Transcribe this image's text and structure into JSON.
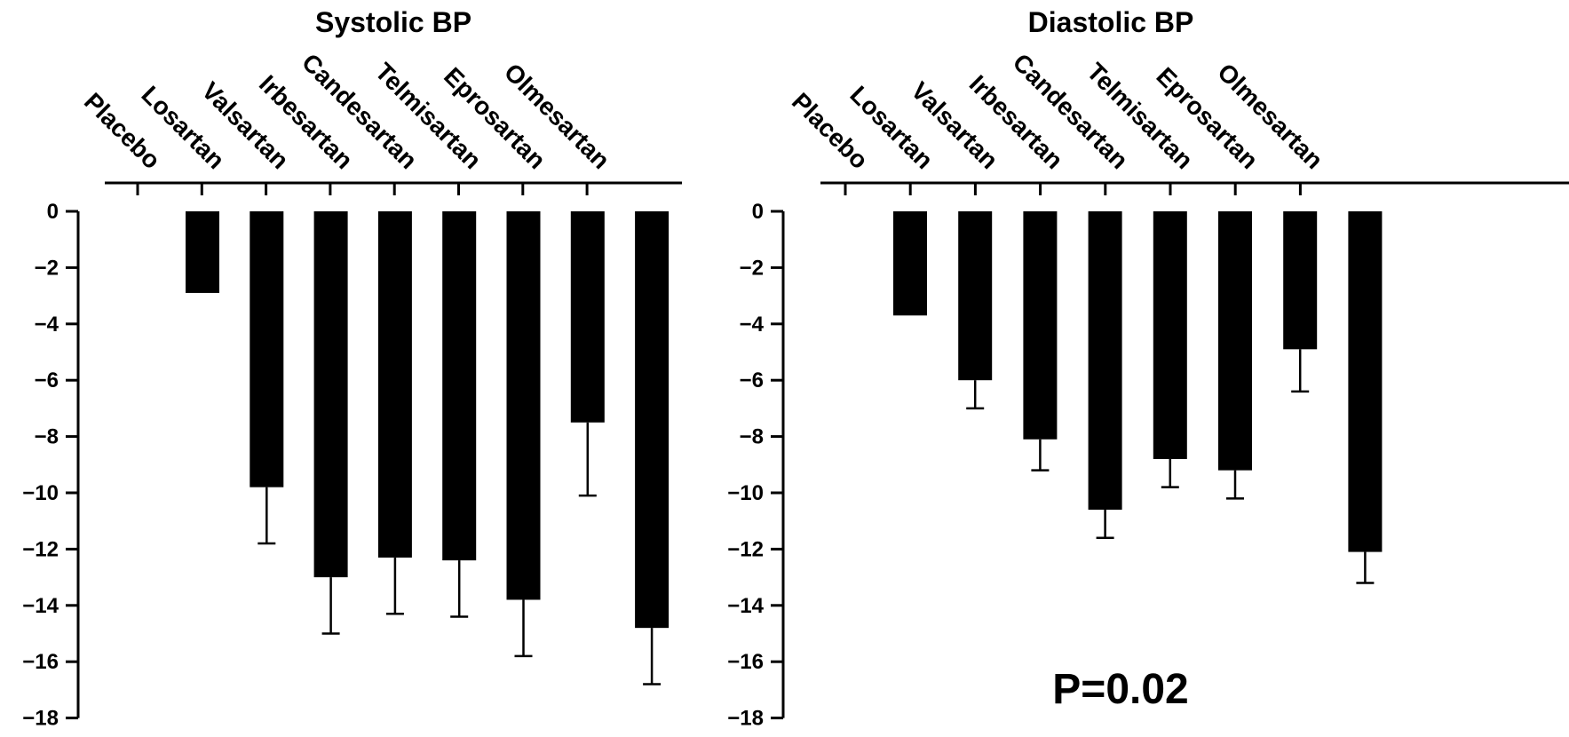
{
  "chart_data": [
    {
      "type": "bar",
      "title": "Systolic BP",
      "categories": [
        "Placebo",
        "Losartan",
        "Valsartan",
        "Irbesartan",
        "Candesartan",
        "Telmisartan",
        "Eprosartan",
        "Olmesartan"
      ],
      "values": [
        -2.9,
        -9.8,
        -13.0,
        -12.3,
        -12.4,
        -13.8,
        -7.5,
        -14.8
      ],
      "error": [
        0,
        2.0,
        2.0,
        2.0,
        2.0,
        2.0,
        2.6,
        2.0
      ],
      "yticks": [
        "0",
        "−2",
        "−4",
        "−6",
        "−8",
        "−10",
        "−12",
        "−14",
        "−16",
        "−18"
      ],
      "ylim": [
        -18,
        0
      ],
      "xaxis_position": "top",
      "grid": false,
      "color": "#000000"
    },
    {
      "type": "bar",
      "title": "Diastolic BP",
      "categories": [
        "Placebo",
        "Losartan",
        "Valsartan",
        "Irbesartan",
        "Candesartan",
        "Telmisartan",
        "Eprosartan",
        "Olmesartan"
      ],
      "values": [
        -3.7,
        -6.0,
        -8.1,
        -10.6,
        -8.8,
        -9.2,
        -4.9,
        -12.1
      ],
      "error": [
        0,
        1.0,
        1.1,
        1.0,
        1.0,
        1.0,
        1.5,
        1.1
      ],
      "yticks": [
        "0",
        "−2",
        "−4",
        "−6",
        "−8",
        "−10",
        "−12",
        "−14",
        "−16",
        "−18"
      ],
      "ylim": [
        -18,
        0
      ],
      "xaxis_position": "top",
      "grid": false,
      "color": "#000000",
      "annotation": "P=0.02"
    }
  ]
}
